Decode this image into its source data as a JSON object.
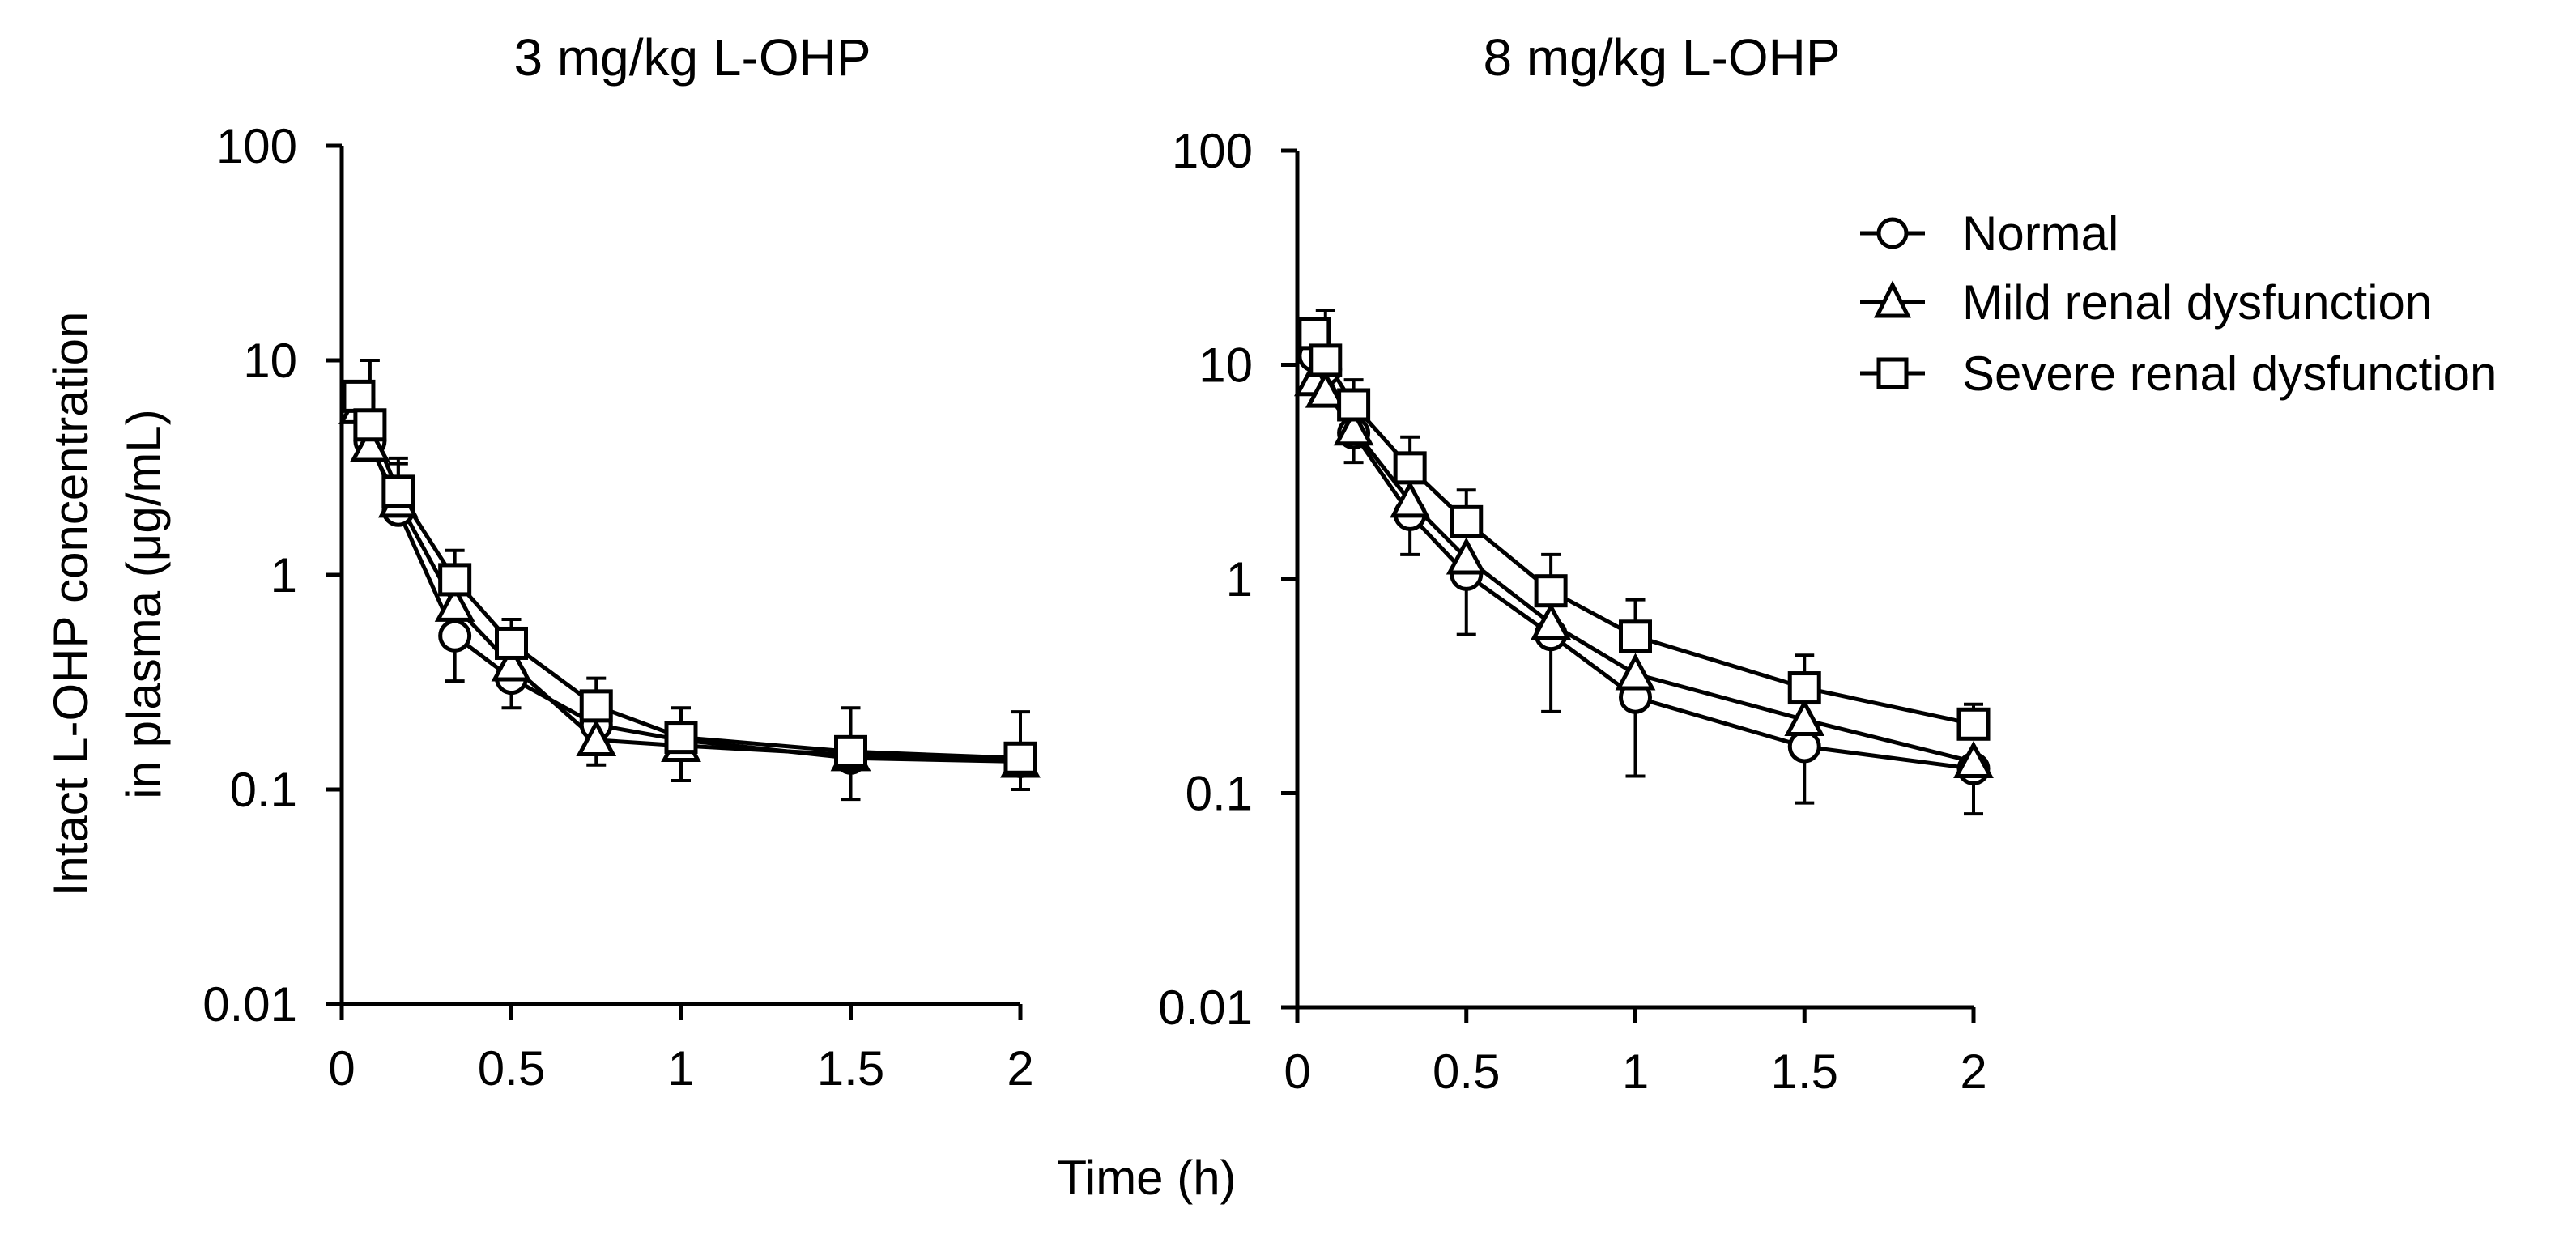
{
  "figure": {
    "shared_xlabel": "Time (h)"
  },
  "legend": {
    "placement": "top-right",
    "entries": [
      {
        "name": "Normal",
        "marker": "circle"
      },
      {
        "name": "Mild renal dysfunction",
        "marker": "triangle"
      },
      {
        "name": "Severe renal dysfunction",
        "marker": "square"
      }
    ]
  },
  "chart_data": [
    {
      "type": "line",
      "title": "3 mg/kg L-OHP",
      "xlabel": "Time (h)",
      "ylabel": [
        "Intact L-OHP concentration",
        "in plasma (μg/mL)"
      ],
      "yscale": "log",
      "xlim": [
        0,
        2
      ],
      "ylim": [
        0.01,
        100
      ],
      "x_ticks": [
        0,
        0.5,
        1,
        1.5,
        2
      ],
      "x_tick_labels": [
        "0",
        "0.5",
        "1",
        "1.5",
        "2"
      ],
      "y_ticks": [
        0.01,
        0.1,
        1,
        10,
        100
      ],
      "y_tick_labels": [
        "0.01",
        "0.1",
        "1",
        "10",
        "100"
      ],
      "x": [
        0.0833,
        0.1667,
        0.3333,
        0.5,
        0.75,
        1,
        1.5,
        2
      ],
      "series": [
        {
          "name": "Normal",
          "marker": "circle",
          "first": {
            "x": 0.05,
            "y": 6.5
          },
          "values": [
            4.2,
            2.0,
            0.52,
            0.33,
            0.2,
            0.17,
            0.14,
            0.135
          ],
          "error_up": [
            null,
            null,
            null,
            null,
            null,
            null,
            null,
            null
          ],
          "error_down": [
            null,
            null,
            0.32,
            0.24,
            null,
            0.11,
            0.09,
            0.1
          ]
        },
        {
          "name": "Mild renal dysfunction",
          "marker": "triangle",
          "first": {
            "x": 0.05,
            "y": 6.0
          },
          "values": [
            4.0,
            2.2,
            0.72,
            0.38,
            0.17,
            0.16,
            0.145,
            0.135
          ],
          "error_up": [
            null,
            null,
            null,
            null,
            null,
            null,
            0.24,
            null
          ],
          "error_down": [
            null,
            3.3,
            null,
            null,
            0.13,
            null,
            null,
            null
          ]
        },
        {
          "name": "Severe renal dysfunction",
          "marker": "square",
          "first": {
            "x": 0.05,
            "y": 6.8
          },
          "values": [
            5.0,
            2.45,
            0.95,
            0.48,
            0.245,
            0.175,
            0.15,
            0.14
          ],
          "error_up": [
            10,
            3.5,
            1.3,
            0.62,
            0.33,
            0.24,
            null,
            0.23
          ],
          "error_down": [
            null,
            null,
            null,
            null,
            null,
            null,
            null,
            null
          ]
        }
      ]
    },
    {
      "type": "line",
      "title": "8 mg/kg L-OHP",
      "xlabel": "Time (h)",
      "ylabel": "",
      "yscale": "log",
      "xlim": [
        0,
        2
      ],
      "ylim": [
        0.01,
        100
      ],
      "x_ticks": [
        0,
        0.5,
        1,
        1.5,
        2
      ],
      "x_tick_labels": [
        "0",
        "0.5",
        "1",
        "1.5",
        "2"
      ],
      "y_ticks": [
        0.01,
        0.1,
        1,
        10,
        100
      ],
      "y_tick_labels": [
        "0.01",
        "0.1",
        "1",
        "10",
        "100"
      ],
      "x": [
        0.0833,
        0.1667,
        0.3333,
        0.5,
        0.75,
        1,
        1.5,
        2
      ],
      "series": [
        {
          "name": "Normal",
          "marker": "circle",
          "first": {
            "x": 0.05,
            "y": 11
          },
          "values": [
            9.5,
            4.8,
            2.0,
            1.05,
            0.55,
            0.28,
            0.165,
            0.13
          ],
          "error_up": [
            null,
            null,
            null,
            null,
            null,
            null,
            null,
            null
          ],
          "error_down": [
            null,
            3.5,
            1.3,
            0.55,
            0.24,
            0.12,
            0.09,
            0.08
          ]
        },
        {
          "name": "Mild renal dysfunction",
          "marker": "triangle",
          "first": {
            "x": 0.05,
            "y": 8.5
          },
          "values": [
            7.5,
            5.0,
            2.3,
            1.25,
            0.62,
            0.36,
            0.22,
            0.14
          ],
          "error_up": [
            null,
            null,
            null,
            null,
            null,
            null,
            null,
            null
          ],
          "error_down": [
            null,
            null,
            null,
            null,
            null,
            null,
            null,
            null
          ]
        },
        {
          "name": "Severe renal dysfunction",
          "marker": "square",
          "first": {
            "x": 0.05,
            "y": 14
          },
          "values": [
            10.5,
            6.5,
            3.3,
            1.85,
            0.88,
            0.54,
            0.31,
            0.21
          ],
          "error_up": [
            18,
            8.5,
            4.6,
            2.6,
            1.3,
            0.8,
            0.44,
            0.26
          ],
          "error_down": [
            null,
            null,
            null,
            null,
            null,
            null,
            null,
            null
          ]
        }
      ]
    }
  ]
}
